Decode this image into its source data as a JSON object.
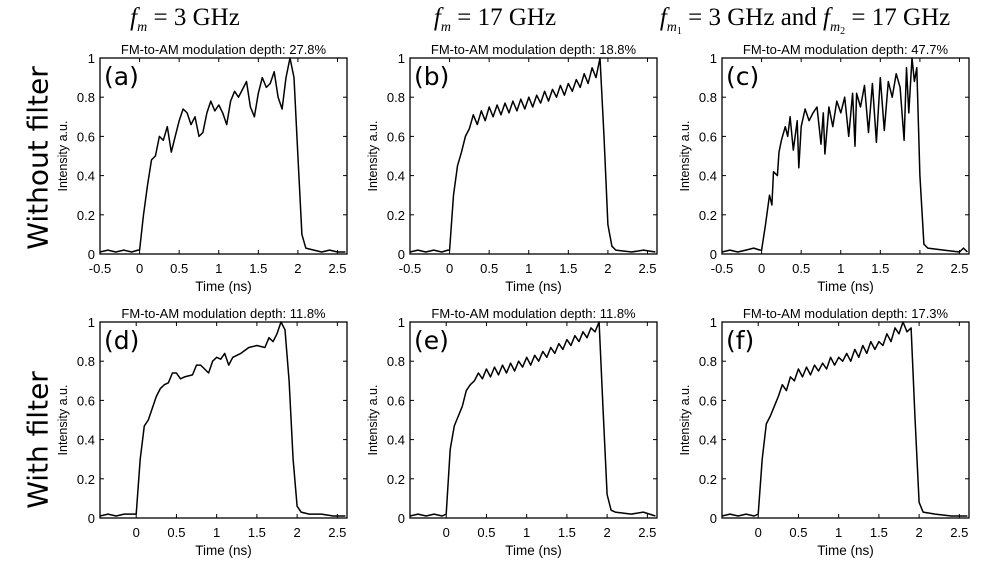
{
  "headers": [
    {
      "f": "f",
      "sub": "m",
      "subsub": "",
      "text": " = 3  GHz"
    },
    {
      "f": "f",
      "sub": "m",
      "subsub": "",
      "text": " = 17  GHz"
    },
    {
      "f": "f",
      "sub": "m",
      "subsub": "1",
      "text": " = 3  GHz and ",
      "f2": "f",
      "sub2": "m",
      "subsub2": "2",
      "text2": " = 17  GHz"
    }
  ],
  "row_labels": [
    "Without filter",
    "With filter"
  ],
  "chart_data": [
    {
      "type": "line",
      "panel": "(a)",
      "title": "FM-to-AM modulation depth: 27.8%",
      "xlabel": "Time (ns)",
      "ylabel": "Intensity a.u.",
      "xlim": [
        -0.5,
        2.62
      ],
      "ylim": [
        0,
        1
      ],
      "xticks": [
        "-0.5",
        "0",
        "0.5",
        "1",
        "1.5",
        "2",
        "2.5"
      ],
      "yticks": [
        "0",
        "0.2",
        "0.4",
        "0.6",
        "0.8",
        "1"
      ],
      "grid": false,
      "points": [
        [
          -0.5,
          0.01
        ],
        [
          -0.4,
          0.02
        ],
        [
          -0.3,
          0.01
        ],
        [
          -0.2,
          0.02
        ],
        [
          -0.1,
          0.01
        ],
        [
          -0.02,
          0.02
        ],
        [
          0,
          0.02
        ],
        [
          0.05,
          0.2
        ],
        [
          0.1,
          0.35
        ],
        [
          0.15,
          0.48
        ],
        [
          0.2,
          0.5
        ],
        [
          0.25,
          0.6
        ],
        [
          0.3,
          0.58
        ],
        [
          0.35,
          0.65
        ],
        [
          0.4,
          0.52
        ],
        [
          0.45,
          0.6
        ],
        [
          0.5,
          0.68
        ],
        [
          0.55,
          0.74
        ],
        [
          0.6,
          0.72
        ],
        [
          0.65,
          0.66
        ],
        [
          0.7,
          0.7
        ],
        [
          0.75,
          0.6
        ],
        [
          0.8,
          0.62
        ],
        [
          0.85,
          0.72
        ],
        [
          0.9,
          0.78
        ],
        [
          0.95,
          0.73
        ],
        [
          1.0,
          0.76
        ],
        [
          1.05,
          0.72
        ],
        [
          1.1,
          0.66
        ],
        [
          1.15,
          0.78
        ],
        [
          1.2,
          0.83
        ],
        [
          1.25,
          0.8
        ],
        [
          1.3,
          0.84
        ],
        [
          1.35,
          0.88
        ],
        [
          1.4,
          0.75
        ],
        [
          1.45,
          0.7
        ],
        [
          1.5,
          0.82
        ],
        [
          1.55,
          0.9
        ],
        [
          1.6,
          0.85
        ],
        [
          1.65,
          0.87
        ],
        [
          1.7,
          0.93
        ],
        [
          1.75,
          0.8
        ],
        [
          1.8,
          0.74
        ],
        [
          1.85,
          0.9
        ],
        [
          1.9,
          1.0
        ],
        [
          1.95,
          0.9
        ],
        [
          2.0,
          0.5
        ],
        [
          2.05,
          0.1
        ],
        [
          2.1,
          0.03
        ],
        [
          2.2,
          0.02
        ],
        [
          2.3,
          0.01
        ],
        [
          2.4,
          0.02
        ],
        [
          2.5,
          0.01
        ],
        [
          2.6,
          0.01
        ]
      ]
    },
    {
      "type": "line",
      "panel": "(b)",
      "title": "FM-to-AM modulation depth: 18.8%",
      "xlabel": "Time (ns)",
      "ylabel": "Intensity a.u.",
      "xlim": [
        -0.5,
        2.62
      ],
      "ylim": [
        0,
        1
      ],
      "xticks": [
        "-0.5",
        "0",
        "0.5",
        "1",
        "1.5",
        "2",
        "2.5"
      ],
      "yticks": [
        "0",
        "0.2",
        "0.4",
        "0.6",
        "0.8",
        "1"
      ],
      "grid": false,
      "points": [
        [
          -0.5,
          0.01
        ],
        [
          -0.4,
          0.02
        ],
        [
          -0.3,
          0.01
        ],
        [
          -0.2,
          0.02
        ],
        [
          -0.1,
          0.01
        ],
        [
          -0.02,
          0.02
        ],
        [
          0,
          0.02
        ],
        [
          0.05,
          0.3
        ],
        [
          0.1,
          0.45
        ],
        [
          0.15,
          0.52
        ],
        [
          0.2,
          0.6
        ],
        [
          0.25,
          0.64
        ],
        [
          0.3,
          0.71
        ],
        [
          0.35,
          0.66
        ],
        [
          0.4,
          0.73
        ],
        [
          0.45,
          0.68
        ],
        [
          0.5,
          0.75
        ],
        [
          0.55,
          0.7
        ],
        [
          0.6,
          0.76
        ],
        [
          0.65,
          0.71
        ],
        [
          0.7,
          0.77
        ],
        [
          0.75,
          0.72
        ],
        [
          0.8,
          0.78
        ],
        [
          0.85,
          0.73
        ],
        [
          0.9,
          0.79
        ],
        [
          0.95,
          0.74
        ],
        [
          1.0,
          0.8
        ],
        [
          1.05,
          0.75
        ],
        [
          1.1,
          0.81
        ],
        [
          1.15,
          0.77
        ],
        [
          1.2,
          0.83
        ],
        [
          1.25,
          0.78
        ],
        [
          1.3,
          0.84
        ],
        [
          1.35,
          0.8
        ],
        [
          1.4,
          0.86
        ],
        [
          1.45,
          0.81
        ],
        [
          1.5,
          0.87
        ],
        [
          1.55,
          0.83
        ],
        [
          1.6,
          0.89
        ],
        [
          1.65,
          0.85
        ],
        [
          1.7,
          0.92
        ],
        [
          1.75,
          0.87
        ],
        [
          1.8,
          0.95
        ],
        [
          1.85,
          0.9
        ],
        [
          1.9,
          1.0
        ],
        [
          1.95,
          0.6
        ],
        [
          2.0,
          0.15
        ],
        [
          2.05,
          0.04
        ],
        [
          2.1,
          0.02
        ],
        [
          2.3,
          0.01
        ],
        [
          2.45,
          0.02
        ],
        [
          2.6,
          0.01
        ]
      ]
    },
    {
      "type": "line",
      "panel": "(c)",
      "title": "FM-to-AM modulation depth: 47.7%",
      "xlabel": "Time (ns)",
      "ylabel": "Intensity a.u.",
      "xlim": [
        -0.5,
        2.62
      ],
      "ylim": [
        0,
        1
      ],
      "xticks": [
        "-0.5",
        "0",
        "0.5",
        "1",
        "1.5",
        "2",
        "2.5"
      ],
      "yticks": [
        "0",
        "0.2",
        "0.4",
        "0.6",
        "0.8",
        "1"
      ],
      "grid": false,
      "points": [
        [
          -0.5,
          0.01
        ],
        [
          -0.4,
          0.02
        ],
        [
          -0.3,
          0.01
        ],
        [
          -0.2,
          0.02
        ],
        [
          -0.1,
          0.03
        ],
        [
          -0.02,
          0.02
        ],
        [
          0,
          0.02
        ],
        [
          0.05,
          0.15
        ],
        [
          0.1,
          0.3
        ],
        [
          0.13,
          0.25
        ],
        [
          0.15,
          0.42
        ],
        [
          0.2,
          0.4
        ],
        [
          0.22,
          0.52
        ],
        [
          0.25,
          0.58
        ],
        [
          0.3,
          0.65
        ],
        [
          0.33,
          0.6
        ],
        [
          0.36,
          0.7
        ],
        [
          0.4,
          0.53
        ],
        [
          0.45,
          0.68
        ],
        [
          0.47,
          0.44
        ],
        [
          0.5,
          0.65
        ],
        [
          0.55,
          0.74
        ],
        [
          0.6,
          0.68
        ],
        [
          0.65,
          0.72
        ],
        [
          0.7,
          0.75
        ],
        [
          0.75,
          0.56
        ],
        [
          0.78,
          0.72
        ],
        [
          0.8,
          0.51
        ],
        [
          0.85,
          0.75
        ],
        [
          0.9,
          0.65
        ],
        [
          0.95,
          0.78
        ],
        [
          1.0,
          0.72
        ],
        [
          1.05,
          0.8
        ],
        [
          1.1,
          0.6
        ],
        [
          1.15,
          0.82
        ],
        [
          1.18,
          0.55
        ],
        [
          1.2,
          0.82
        ],
        [
          1.25,
          0.75
        ],
        [
          1.3,
          0.86
        ],
        [
          1.35,
          0.62
        ],
        [
          1.4,
          0.87
        ],
        [
          1.45,
          0.57
        ],
        [
          1.5,
          0.9
        ],
        [
          1.55,
          0.63
        ],
        [
          1.6,
          0.88
        ],
        [
          1.65,
          0.8
        ],
        [
          1.7,
          0.92
        ],
        [
          1.75,
          0.85
        ],
        [
          1.8,
          0.58
        ],
        [
          1.83,
          0.95
        ],
        [
          1.86,
          0.72
        ],
        [
          1.9,
          1.0
        ],
        [
          1.93,
          0.88
        ],
        [
          1.96,
          0.95
        ],
        [
          2.0,
          0.4
        ],
        [
          2.05,
          0.05
        ],
        [
          2.1,
          0.03
        ],
        [
          2.3,
          0.02
        ],
        [
          2.5,
          0.01
        ],
        [
          2.55,
          0.03
        ],
        [
          2.6,
          0.01
        ]
      ]
    },
    {
      "type": "line",
      "panel": "(d)",
      "title": "FM-to-AM modulation depth: 11.8%",
      "xlabel": "Time (ns)",
      "ylabel": "Intensity a.u.",
      "xlim": [
        -0.45,
        2.62
      ],
      "ylim": [
        0,
        1
      ],
      "xticks": [
        "0",
        "0.5",
        "1",
        "1.5",
        "2",
        "2.5"
      ],
      "yticks": [
        "0",
        "0.2",
        "0.4",
        "0.6",
        "0.8",
        "1"
      ],
      "grid": false,
      "points": [
        [
          -0.45,
          0.01
        ],
        [
          -0.35,
          0.02
        ],
        [
          -0.25,
          0.01
        ],
        [
          -0.15,
          0.02
        ],
        [
          -0.05,
          0.02
        ],
        [
          0,
          0.02
        ],
        [
          0.05,
          0.3
        ],
        [
          0.1,
          0.47
        ],
        [
          0.15,
          0.5
        ],
        [
          0.2,
          0.56
        ],
        [
          0.25,
          0.62
        ],
        [
          0.3,
          0.66
        ],
        [
          0.35,
          0.68
        ],
        [
          0.4,
          0.69
        ],
        [
          0.45,
          0.74
        ],
        [
          0.5,
          0.74
        ],
        [
          0.55,
          0.71
        ],
        [
          0.6,
          0.72
        ],
        [
          0.7,
          0.73
        ],
        [
          0.75,
          0.78
        ],
        [
          0.8,
          0.78
        ],
        [
          0.85,
          0.76
        ],
        [
          0.9,
          0.74
        ],
        [
          0.95,
          0.8
        ],
        [
          1.0,
          0.82
        ],
        [
          1.05,
          0.81
        ],
        [
          1.1,
          0.84
        ],
        [
          1.15,
          0.78
        ],
        [
          1.2,
          0.82
        ],
        [
          1.3,
          0.84
        ],
        [
          1.4,
          0.87
        ],
        [
          1.5,
          0.88
        ],
        [
          1.6,
          0.87
        ],
        [
          1.65,
          0.92
        ],
        [
          1.7,
          0.9
        ],
        [
          1.75,
          0.94
        ],
        [
          1.8,
          1.0
        ],
        [
          1.85,
          0.96
        ],
        [
          1.9,
          0.7
        ],
        [
          1.95,
          0.3
        ],
        [
          2.0,
          0.06
        ],
        [
          2.05,
          0.03
        ],
        [
          2.15,
          0.02
        ],
        [
          2.3,
          0.02
        ],
        [
          2.45,
          0.01
        ],
        [
          2.6,
          0.01
        ]
      ]
    },
    {
      "type": "line",
      "panel": "(e)",
      "title": "FM-to-AM modulation depth: 11.8%",
      "xlabel": "Time (ns)",
      "ylabel": "Intensity a.u.",
      "xlim": [
        -0.45,
        2.62
      ],
      "ylim": [
        0,
        1
      ],
      "xticks": [
        "0",
        "0.5",
        "1",
        "1.5",
        "2",
        "2.5"
      ],
      "yticks": [
        "0",
        "0.2",
        "0.4",
        "0.6",
        "0.8",
        "1"
      ],
      "grid": false,
      "points": [
        [
          -0.45,
          0.01
        ],
        [
          -0.35,
          0.02
        ],
        [
          -0.25,
          0.01
        ],
        [
          -0.15,
          0.02
        ],
        [
          -0.05,
          0.01
        ],
        [
          0,
          0.02
        ],
        [
          0.05,
          0.35
        ],
        [
          0.1,
          0.47
        ],
        [
          0.15,
          0.52
        ],
        [
          0.2,
          0.57
        ],
        [
          0.25,
          0.65
        ],
        [
          0.3,
          0.68
        ],
        [
          0.35,
          0.7
        ],
        [
          0.4,
          0.74
        ],
        [
          0.45,
          0.71
        ],
        [
          0.5,
          0.76
        ],
        [
          0.55,
          0.72
        ],
        [
          0.6,
          0.77
        ],
        [
          0.65,
          0.73
        ],
        [
          0.7,
          0.78
        ],
        [
          0.75,
          0.74
        ],
        [
          0.8,
          0.79
        ],
        [
          0.85,
          0.75
        ],
        [
          0.9,
          0.8
        ],
        [
          0.95,
          0.77
        ],
        [
          1.0,
          0.82
        ],
        [
          1.05,
          0.78
        ],
        [
          1.1,
          0.83
        ],
        [
          1.15,
          0.8
        ],
        [
          1.2,
          0.85
        ],
        [
          1.25,
          0.82
        ],
        [
          1.3,
          0.87
        ],
        [
          1.35,
          0.84
        ],
        [
          1.4,
          0.89
        ],
        [
          1.45,
          0.86
        ],
        [
          1.5,
          0.91
        ],
        [
          1.55,
          0.88
        ],
        [
          1.6,
          0.93
        ],
        [
          1.65,
          0.9
        ],
        [
          1.7,
          0.95
        ],
        [
          1.75,
          0.92
        ],
        [
          1.8,
          0.97
        ],
        [
          1.85,
          0.95
        ],
        [
          1.9,
          1.0
        ],
        [
          1.95,
          0.55
        ],
        [
          2.0,
          0.12
        ],
        [
          2.05,
          0.04
        ],
        [
          2.1,
          0.03
        ],
        [
          2.3,
          0.02
        ],
        [
          2.45,
          0.03
        ],
        [
          2.6,
          0.01
        ]
      ]
    },
    {
      "type": "line",
      "panel": "(f)",
      "title": "FM-to-AM modulation depth: 17.3%",
      "xlabel": "Time (ns)",
      "ylabel": "Intensity a.u.",
      "xlim": [
        -0.45,
        2.62
      ],
      "ylim": [
        0,
        1
      ],
      "xticks": [
        "0",
        "0.5",
        "1",
        "1.5",
        "2",
        "2.5"
      ],
      "yticks": [
        "0",
        "0.2",
        "0.4",
        "0.6",
        "0.8",
        "1"
      ],
      "grid": false,
      "points": [
        [
          -0.45,
          0.01
        ],
        [
          -0.35,
          0.02
        ],
        [
          -0.25,
          0.01
        ],
        [
          -0.15,
          0.02
        ],
        [
          -0.05,
          0.01
        ],
        [
          0,
          0.02
        ],
        [
          0.05,
          0.3
        ],
        [
          0.1,
          0.48
        ],
        [
          0.15,
          0.52
        ],
        [
          0.2,
          0.57
        ],
        [
          0.25,
          0.62
        ],
        [
          0.3,
          0.68
        ],
        [
          0.35,
          0.65
        ],
        [
          0.4,
          0.72
        ],
        [
          0.45,
          0.7
        ],
        [
          0.5,
          0.76
        ],
        [
          0.55,
          0.72
        ],
        [
          0.6,
          0.77
        ],
        [
          0.65,
          0.73
        ],
        [
          0.7,
          0.78
        ],
        [
          0.75,
          0.75
        ],
        [
          0.8,
          0.79
        ],
        [
          0.85,
          0.76
        ],
        [
          0.9,
          0.82
        ],
        [
          0.95,
          0.78
        ],
        [
          1.0,
          0.82
        ],
        [
          1.05,
          0.8
        ],
        [
          1.1,
          0.84
        ],
        [
          1.15,
          0.8
        ],
        [
          1.2,
          0.86
        ],
        [
          1.25,
          0.82
        ],
        [
          1.3,
          0.88
        ],
        [
          1.35,
          0.84
        ],
        [
          1.4,
          0.9
        ],
        [
          1.45,
          0.86
        ],
        [
          1.5,
          0.9
        ],
        [
          1.55,
          0.88
        ],
        [
          1.6,
          0.94
        ],
        [
          1.65,
          0.9
        ],
        [
          1.7,
          0.97
        ],
        [
          1.75,
          0.94
        ],
        [
          1.8,
          1.0
        ],
        [
          1.85,
          0.95
        ],
        [
          1.9,
          0.97
        ],
        [
          1.95,
          0.5
        ],
        [
          2.0,
          0.08
        ],
        [
          2.05,
          0.03
        ],
        [
          2.2,
          0.02
        ],
        [
          2.4,
          0.01
        ],
        [
          2.6,
          0.01
        ]
      ]
    }
  ]
}
